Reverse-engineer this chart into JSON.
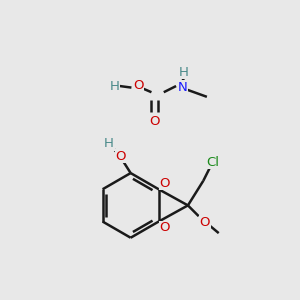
{
  "background_color": "#e8e8e8",
  "line_color": "#1a1a1a",
  "line_width": 1.8,
  "atom_colors": {
    "O": "#cc0000",
    "N": "#1a1aff",
    "Cl": "#1a8a1a",
    "H": "#4a8a8a",
    "C": "#1a1a1a"
  },
  "font_size": 9.5
}
